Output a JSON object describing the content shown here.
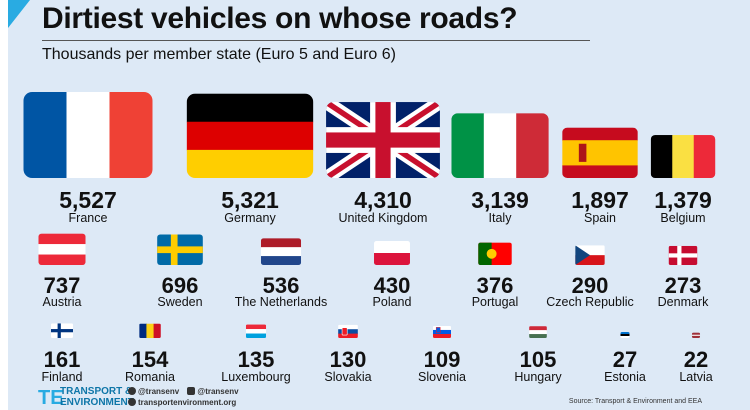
{
  "title": "Dirtiest vehicles on whose roads?",
  "subtitle": "Thousands per member state (Euro 5 and Euro 6)",
  "source": "Source: Transport & Environment and EEA",
  "logo": {
    "line1": "TRANSPORT &",
    "line2": "ENVIRONMENT",
    "mark": "TE"
  },
  "social": {
    "twitter": "@transenv",
    "facebook": "@transenv",
    "web": "transportenvironment.org",
    "twitter_icon": "twitter-icon",
    "facebook_icon": "facebook-icon",
    "web_icon": "globe-icon"
  },
  "colors": {
    "background": "#dde9f6",
    "accent": "#29abe2",
    "text": "#111111"
  },
  "chart_data": {
    "type": "bar",
    "title": "Dirtiest vehicles on whose roads?",
    "subtitle": "Thousands per member state (Euro 5 and Euro 6)",
    "encoding": "flag size proportional to value",
    "categories": [
      "France",
      "Germany",
      "United Kingdom",
      "Italy",
      "Spain",
      "Belgium",
      "Austria",
      "Sweden",
      "The Netherlands",
      "Poland",
      "Portugal",
      "Czech Republic",
      "Denmark",
      "Finland",
      "Romania",
      "Luxembourg",
      "Slovakia",
      "Slovenia",
      "Hungary",
      "Estonia",
      "Latvia"
    ],
    "series": [
      {
        "values": [
          5527,
          5321,
          4310,
          3139,
          1897,
          1379,
          737,
          696,
          536,
          430,
          376,
          290,
          273,
          161,
          154,
          135,
          130,
          109,
          105,
          27,
          22
        ]
      }
    ],
    "value_labels": [
      "5,527",
      "5,321",
      "4,310",
      "3,139",
      "1,897",
      "1,379",
      "737",
      "696",
      "536",
      "430",
      "376",
      "290",
      "273",
      "161",
      "154",
      "135",
      "130",
      "109",
      "105",
      "27",
      "22"
    ]
  }
}
